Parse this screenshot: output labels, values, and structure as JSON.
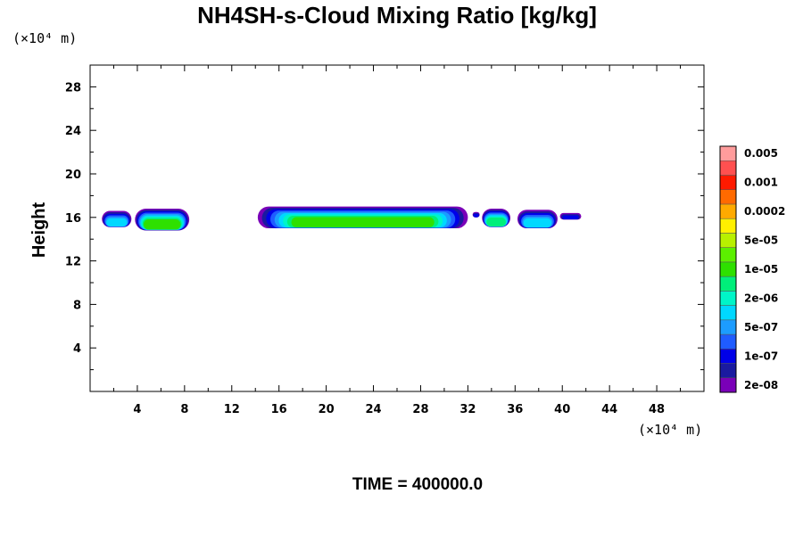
{
  "chart_data": {
    "type": "heatmap",
    "title": "NH4SH-s-Cloud Mixing Ratio [kg/kg]",
    "ylabel": "Height",
    "x_unit": "(×10⁴ m)",
    "y_unit": "(×10⁴ m)",
    "footer": "TIME = 400000.0",
    "xlim": [
      0,
      52
    ],
    "ylim": [
      0,
      30
    ],
    "x_ticks": [
      4,
      8,
      12,
      16,
      20,
      24,
      28,
      32,
      36,
      40,
      44,
      48
    ],
    "y_ticks": [
      4,
      8,
      12,
      16,
      20,
      24,
      28
    ],
    "x_tick_labels": [
      "4",
      "8",
      "12",
      "16",
      "20",
      "24",
      "28",
      "32",
      "36",
      "40",
      "44",
      "48"
    ],
    "y_tick_labels": [
      "4",
      "8",
      "12",
      "16",
      "20",
      "24",
      "28"
    ],
    "colorbar": {
      "colors": [
        "#7a00b8",
        "#1a1aa0",
        "#0000e8",
        "#1f5cff",
        "#1c9cff",
        "#00d8ff",
        "#00f5c8",
        "#00ef7a",
        "#2ee000",
        "#5cf000",
        "#b8f000",
        "#fff000",
        "#ffaa00",
        "#ff6a00",
        "#ff1a00",
        "#ff5050",
        "#ff9c9c"
      ],
      "labels": [
        "2e-08",
        "1e-07",
        "5e-07",
        "2e-06",
        "1e-05",
        "5e-05",
        "0.0002",
        "0.001",
        "0.005"
      ],
      "label_boundaries": [
        1,
        3,
        5,
        7,
        9,
        11,
        13,
        15,
        17
      ]
    },
    "cloud_blobs": [
      {
        "x0": 1.0,
        "x1": 3.5,
        "y0": 15.1,
        "y1": 16.6,
        "peak_level": 5
      },
      {
        "x0": 3.8,
        "x1": 8.4,
        "y0": 14.8,
        "y1": 16.8,
        "peak_level": 8
      },
      {
        "x0": 14.2,
        "x1": 32.0,
        "y0": 15.0,
        "y1": 17.0,
        "peak_level": 8
      },
      {
        "x0": 32.4,
        "x1": 33.0,
        "y0": 16.0,
        "y1": 16.5,
        "peak_level": 2
      },
      {
        "x0": 33.2,
        "x1": 35.6,
        "y0": 15.1,
        "y1": 16.8,
        "peak_level": 7
      },
      {
        "x0": 36.2,
        "x1": 39.6,
        "y0": 15.0,
        "y1": 16.7,
        "peak_level": 5
      },
      {
        "x0": 39.8,
        "x1": 41.6,
        "y0": 15.8,
        "y1": 16.4,
        "peak_level": 2
      }
    ]
  }
}
